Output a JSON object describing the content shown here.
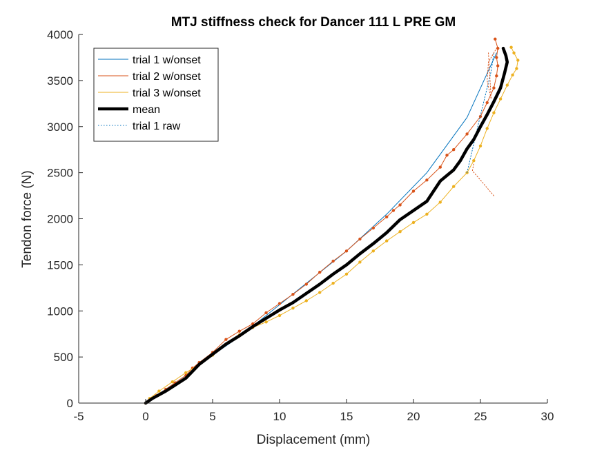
{
  "chart_data": {
    "type": "line",
    "title": "MTJ stiffness check for Dancer 111 L PRE GM",
    "xlabel": "Displacement (mm)",
    "ylabel": "Tendon force (N)",
    "xlim": [
      -5,
      30
    ],
    "ylim": [
      0,
      4000
    ],
    "xticks": [
      "-5",
      "0",
      "5",
      "10",
      "15",
      "20",
      "25",
      "30"
    ],
    "yticks": [
      "0",
      "500",
      "1000",
      "1500",
      "2000",
      "2500",
      "3000",
      "3500",
      "4000"
    ],
    "grid": false,
    "legend_position": "top-left",
    "series": [
      {
        "name": "trial 1 w/onset",
        "color": "#0072BD",
        "style": "solid",
        "x": [
          0,
          0.5,
          1.5,
          3,
          5,
          7,
          9,
          12,
          15,
          18,
          21,
          24,
          26.2
        ],
        "y": [
          0,
          50,
          150,
          300,
          520,
          720,
          950,
          1300,
          1650,
          2050,
          2500,
          3100,
          3800
        ]
      },
      {
        "name": "trial 2 w/onset",
        "color": "#D95319",
        "style": "solid-dots",
        "x": [
          0,
          0.3,
          0.8,
          1.5,
          2.2,
          3,
          3.5,
          4,
          5,
          6,
          7,
          8,
          9,
          10,
          11,
          12,
          13,
          14,
          15,
          16,
          17,
          18,
          18.5,
          19,
          20,
          21,
          22,
          22.5,
          23,
          24,
          25,
          25.5,
          26,
          26.2,
          26.3,
          26.2,
          26.3,
          26.1
        ],
        "y": [
          0,
          40,
          80,
          150,
          220,
          300,
          380,
          440,
          550,
          690,
          780,
          860,
          980,
          1080,
          1180,
          1290,
          1420,
          1540,
          1650,
          1780,
          1900,
          2020,
          2090,
          2150,
          2300,
          2420,
          2560,
          2690,
          2750,
          2920,
          3110,
          3260,
          3420,
          3550,
          3660,
          3750,
          3850,
          3950
        ]
      },
      {
        "name": "trial 3 w/onset",
        "color": "#EDB120",
        "style": "solid-dots",
        "x": [
          0,
          0.3,
          1,
          2,
          3,
          4,
          5,
          6,
          7,
          8,
          9,
          10,
          11,
          12,
          13,
          14,
          15,
          16,
          17,
          18,
          19,
          20,
          21,
          22,
          23,
          24,
          24.5,
          25,
          25.5,
          26,
          26.5,
          27,
          27.4,
          27.7,
          27.8,
          27.5,
          27.3
        ],
        "y": [
          0,
          50,
          130,
          230,
          330,
          420,
          520,
          640,
          740,
          820,
          880,
          950,
          1030,
          1110,
          1200,
          1300,
          1400,
          1530,
          1650,
          1760,
          1860,
          1960,
          2050,
          2180,
          2350,
          2500,
          2630,
          2790,
          2980,
          3150,
          3300,
          3450,
          3560,
          3630,
          3720,
          3800,
          3860
        ]
      },
      {
        "name": "mean",
        "color": "#000000",
        "style": "thick",
        "x": [
          0,
          0.5,
          1.5,
          3,
          4,
          5,
          6,
          7,
          8,
          9,
          10,
          11,
          12,
          13,
          14,
          15,
          16,
          17,
          18,
          19,
          20,
          21,
          21.5,
          22,
          23,
          23.5,
          24,
          24.5,
          25,
          25.5,
          26,
          26.5,
          26.8,
          27,
          26.9,
          26.7
        ],
        "y": [
          0,
          50,
          130,
          270,
          420,
          530,
          640,
          730,
          830,
          920,
          1010,
          1090,
          1190,
          1290,
          1400,
          1500,
          1620,
          1730,
          1850,
          1990,
          2090,
          2190,
          2300,
          2410,
          2530,
          2630,
          2760,
          2860,
          3000,
          3130,
          3270,
          3420,
          3580,
          3700,
          3770,
          3850
        ]
      },
      {
        "name": "trial 1 raw",
        "color": "#0072BD",
        "style": "dotted",
        "x": [
          24,
          24.8,
          25.3,
          25.8,
          26
        ],
        "y": [
          2500,
          3000,
          3300,
          3600,
          3800
        ]
      },
      {
        "name": "",
        "color": "#D95319",
        "style": "dotted",
        "legend": false,
        "x": [
          25.6,
          25.8,
          25.5,
          25.6,
          26.2
        ],
        "y": [
          3800,
          3300,
          3500,
          3700,
          3850
        ]
      },
      {
        "name": "",
        "color": "#D95319",
        "style": "dotted",
        "legend": false,
        "x": [
          26,
          25,
          24.4,
          24.5
        ],
        "y": [
          2250,
          2420,
          2520,
          2600
        ]
      }
    ]
  }
}
